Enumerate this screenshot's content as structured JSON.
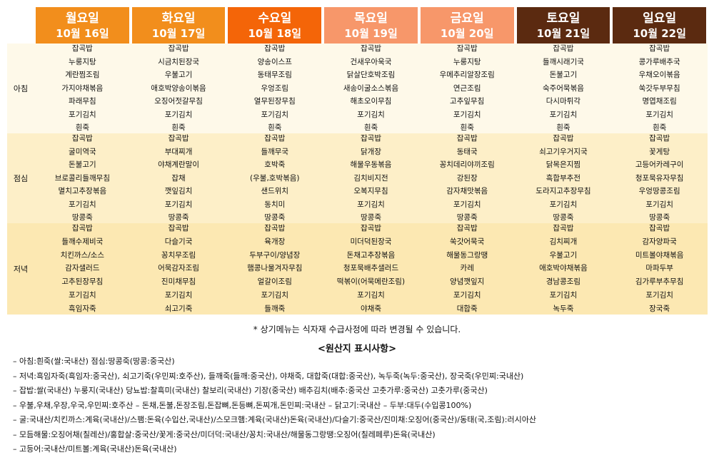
{
  "days": [
    {
      "name": "월요일",
      "date": "10월 16일",
      "color": "#f28e1c"
    },
    {
      "name": "화요일",
      "date": "10월 17일",
      "color": "#f28e1c"
    },
    {
      "name": "수요일",
      "date": "10월 18일",
      "color": "#f46508"
    },
    {
      "name": "목요일",
      "date": "10월 19일",
      "color": "#f7976a"
    },
    {
      "name": "금요일",
      "date": "10월 20일",
      "color": "#f7976a"
    },
    {
      "name": "토요일",
      "date": "10월 21일",
      "color": "#5b2a10"
    },
    {
      "name": "일요일",
      "date": "10월 22일",
      "color": "#5b2a10"
    }
  ],
  "meals": [
    {
      "label": "아침",
      "items": [
        [
          "잡곡밥",
          "누룽지탕",
          "계란찜조림",
          "가지야채볶음",
          "파래무침",
          "포기김치",
          "흰죽"
        ],
        [
          "잡곡밥",
          "시금치된장국",
          "우불고기",
          "애호박양송이볶음",
          "오징어젓갈무침",
          "포기김치",
          "흰죽"
        ],
        [
          "잡곡밥",
          "양송이스프",
          "동태무조림",
          "우엉조림",
          "열무된장무침",
          "포기김치",
          "흰죽"
        ],
        [
          "잡곡밥",
          "건새우아욱국",
          "닭살단호박조림",
          "새송이굴소스볶음",
          "해초오이무침",
          "포기김치",
          "흰죽"
        ],
        [
          "잡곡밥",
          "누룽지탕",
          "우메추리알장조림",
          "연근조림",
          "고추잎무침",
          "포기김치",
          "흰죽"
        ],
        [
          "잡곡밥",
          "들깨시래기국",
          "돈불고기",
          "숙주어묵볶음",
          "다시마튀각",
          "포기김치",
          "흰죽"
        ],
        [
          "잡곡밥",
          "콩가루배추국",
          "우채오이볶음",
          "쑥갓두부무침",
          "명엽채조림",
          "포기김치",
          "흰죽"
        ]
      ]
    },
    {
      "label": "점심",
      "items": [
        [
          "잡곡밥",
          "굴미역국",
          "돈불고기",
          "브로콜리들깨무침",
          "멸치고추장볶음",
          "포기김치",
          "땅콩죽"
        ],
        [
          "잡곡밥",
          "부대찌개",
          "야채계란말이",
          "잡채",
          "깻잎김치",
          "포기김치",
          "땅콩죽"
        ],
        [
          "잡곡밥",
          "들깨무국",
          "호박죽",
          "(우불,호박볶음)",
          "샌드위치",
          "동치미",
          "땅콩죽"
        ],
        [
          "잡곡밥",
          "닭개장",
          "해물우동볶음",
          "김치비지전",
          "오복지무침",
          "포기김치",
          "땅콩죽"
        ],
        [
          "잡곡밥",
          "동태국",
          "꽁치데리야끼조림",
          "강된장",
          "감자채맛볶음",
          "포기김치",
          "땅콩죽"
        ],
        [
          "잡곡밥",
          "쇠고기우거지국",
          "닭목은지찜",
          "흑합부추전",
          "도라지고추장무침",
          "포기김치",
          "땅콩죽"
        ],
        [
          "잡곡밥",
          "꽃게탕",
          "고등어카레구이",
          "청포묵유자무침",
          "우엉땅콩조림",
          "포기김치",
          "땅콩죽"
        ]
      ]
    },
    {
      "label": "저녁",
      "items": [
        [
          "잡곡밥",
          "들깨수제비국",
          "치킨까스/소스",
          "감자샐러드",
          "고추된장무침",
          "포기김치",
          "흑임자죽"
        ],
        [
          "잡곡밥",
          "다슬기국",
          "꽁치무조림",
          "어묵감자조림",
          "진미채무침",
          "포기김치",
          "쇠고기죽"
        ],
        [
          "잡곡밥",
          "육개장",
          "두부구이/양념장",
          "햄콩나물겨자무침",
          "얼갈이조림",
          "포기김치",
          "들깨죽"
        ],
        [
          "잡곡밥",
          "미더덕된장국",
          "돈채고추장볶음",
          "청포묵배추샐러드",
          "떡볶이(어묵메란조림)",
          "포기김치",
          "야채죽"
        ],
        [
          "잡곡밥",
          "쑥갓어묵국",
          "해물동그랑땡",
          "카레",
          "양념깻잎지",
          "포기김치",
          "대합죽"
        ],
        [
          "잡곡밥",
          "김치찌개",
          "우불고기",
          "애호박야채볶음",
          "경남콩조림",
          "포기김치",
          "녹두죽"
        ],
        [
          "잡곡밥",
          "감자양파국",
          "미트볼야채볶음",
          "마파두부",
          "김가루부추무침",
          "포기김치",
          "장국죽"
        ]
      ]
    }
  ],
  "notice": "* 상기메뉴는 식자재 수급사정에 따라 변경될 수 있습니다.",
  "origin_title": "<원산지 표시사항>",
  "origin_lines": [
    "–  아침:흰죽(쌀:국내산)  점심:땅콩죽(땅콩:중국산)",
    "–  저녁:흑임자죽(흑임자:중국산),  쇠고기죽(우민찌:호주산),  들깨죽(들깨:중국산),  야채죽,  대합죽(대합:중국산),  녹두죽(녹두:중국산),  장국죽(우민찌:국내산)",
    "–  잡밥:쌀(국내산)  누룽지(국내산)  당뇨밥:찰흑미(국내산)  찰보리(국내산)  기장(중국산)  배추김치(배추:중국산 고춧가루:중국산)  고춧가루(중국산)",
    "–  우불,우채,우장,우국,우민찌:호주산   –  돈채,돈불,돈장조림,돈잡뼈,돈등뼈,돈찌개,돈민찌:국내산   –  닭고기:국내산   –  두부:대두(수입콩100%)",
    "–  굴:국내산/치킨까스:계육(국내산)/스팸:돈육(수입산,국내산)/스모크햄:계육(국내산)돈육(국내산)/다슬기:중국산/진미채:오징어(중국산)/동태(국,조림):러시아산",
    "–  모듬해물:오징어채(칠레산)/홍합살:중국산/꽃게:중국산/미더덕:국내산/꽁치:국내산/해물동그랑땡:오징어(칠레페루)돈육(국내산)",
    "–  고등어:국내산/미트볼:계육(국내산)돈육(국내산)"
  ]
}
